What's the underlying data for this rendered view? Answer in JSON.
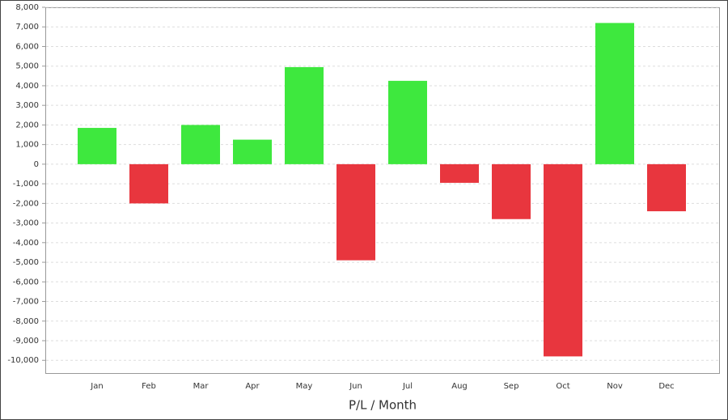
{
  "chart_data": {
    "type": "bar",
    "x_label": "P/L / Month",
    "categories": [
      "Jan",
      "Feb",
      "Mar",
      "Apr",
      "May",
      "Jun",
      "Jul",
      "Aug",
      "Sep",
      "Oct",
      "Nov",
      "Dec"
    ],
    "values": [
      1850,
      -2000,
      2000,
      1250,
      4950,
      -4900,
      4250,
      -950,
      -2800,
      -9800,
      7200,
      -2400
    ],
    "positive_color": "#3ee83e",
    "negative_color": "#e8363e",
    "ylim": [
      -10650,
      8000
    ],
    "yticks": [
      {
        "value": 8000,
        "label": "8,000"
      },
      {
        "value": 7000,
        "label": "7,000"
      },
      {
        "value": 6000,
        "label": "6,000"
      },
      {
        "value": 5000,
        "label": "5,000"
      },
      {
        "value": 4000,
        "label": "4,000"
      },
      {
        "value": 3000,
        "label": "3,000"
      },
      {
        "value": 2000,
        "label": "2,000"
      },
      {
        "value": 1000,
        "label": "1,000"
      },
      0,
      {
        "value": -1000,
        "label": "-1,000"
      },
      {
        "value": -2000,
        "label": "-2,000"
      },
      {
        "value": -3000,
        "label": "-3,000"
      },
      {
        "value": -4000,
        "label": "-4,000"
      },
      {
        "value": -5000,
        "label": "-5,000"
      },
      {
        "value": -6000,
        "label": "-6,000"
      },
      {
        "value": -7000,
        "label": "-7,000"
      },
      {
        "value": -8000,
        "label": "-8,000"
      },
      {
        "value": -9000,
        "label": "-9,000"
      },
      {
        "value": -10000,
        "label": "-10,000"
      }
    ],
    "grid": true
  }
}
